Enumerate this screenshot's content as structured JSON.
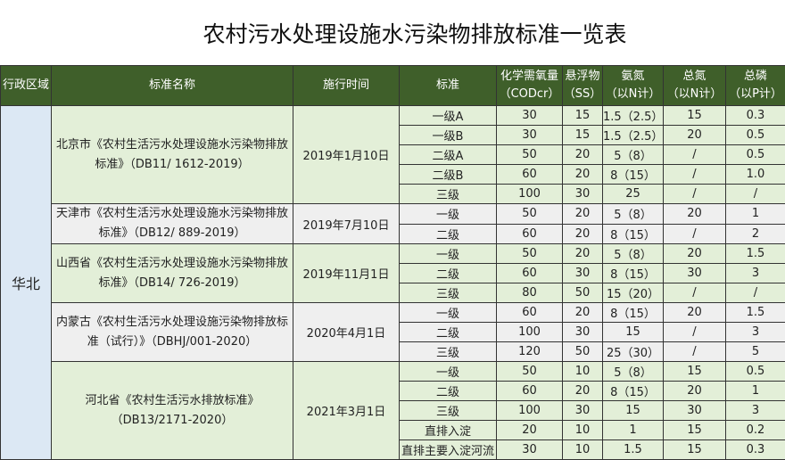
{
  "title": "农村污水处理设施水污染物排放标准一览表",
  "headers": [
    "行政区域",
    "标准名称",
    "施行时间",
    "标准",
    "化学需氧量\n（CODcr）",
    "悬浮物\n（SS）",
    "氨氮\n（以N计）",
    "总氮\n（以N计）",
    "总磷\n（以P计）"
  ],
  "region": "华北",
  "groups": [
    {
      "name": "北京市《农村生活污水处理设施水污染物排放标准》（DB11/ 1612-2019）",
      "date": "2019年1月10日",
      "rows": [
        [
          "一级A",
          "30",
          "15",
          "1.5（2.5）",
          "15",
          "0.3"
        ],
        [
          "一级B",
          "30",
          "15",
          "1.5（2.5）",
          "20",
          "0.5"
        ],
        [
          "二级A",
          "50",
          "20",
          "5（8）",
          "/",
          "0.5"
        ],
        [
          "二级B",
          "60",
          "20",
          "8（15）",
          "/",
          "1.0"
        ],
        [
          "三级",
          "100",
          "30",
          "25",
          "/",
          "/"
        ]
      ]
    },
    {
      "name": "天津市《农村生活污水处理设施水污染物排放标准》（DB12/ 889-2019）",
      "date": "2019年7月10日",
      "rows": [
        [
          "一级",
          "50",
          "20",
          "5（8）",
          "20",
          "1"
        ],
        [
          "二级",
          "60",
          "20",
          "8（15）",
          "/",
          "2"
        ]
      ]
    },
    {
      "name": "山西省《农村生活污水处理设施水污染物排放标准》（DB14/ 726-2019）",
      "date": "2019年11月1日",
      "rows": [
        [
          "一级",
          "50",
          "20",
          "5（8）",
          "20",
          "1.5"
        ],
        [
          "二级",
          "60",
          "30",
          "8（15）",
          "30",
          "3"
        ],
        [
          "三级",
          "80",
          "50",
          "15（20）",
          "/",
          "/"
        ]
      ]
    },
    {
      "name": "内蒙古《农村生活污水处理设施污染物排放标准（试行）》（DBHJ/001-2020）",
      "date": "2020年4月1日",
      "rows": [
        [
          "一级",
          "60",
          "20",
          "8（15）",
          "20",
          "1.5"
        ],
        [
          "二级",
          "100",
          "30",
          "15",
          "/",
          "3"
        ],
        [
          "三级",
          "120",
          "50",
          "25（30）",
          "/",
          "5"
        ]
      ]
    },
    {
      "name": "河北省《农村生活污水排放标准》（DB13/2171-2020）",
      "date": "2021年3月1日",
      "rows": [
        [
          "一级",
          "50",
          "10",
          "5（8）",
          "15",
          "0.5"
        ],
        [
          "二级",
          "60",
          "20",
          "8（15）",
          "20",
          "1"
        ],
        [
          "三级",
          "100",
          "30",
          "15",
          "30",
          "3"
        ],
        [
          "直排入淀",
          "20",
          "10",
          "1",
          "15",
          "0.2"
        ],
        [
          "直排主要入淀河流",
          "30",
          "10",
          "1.5",
          "15",
          "0.3"
        ]
      ]
    }
  ]
}
